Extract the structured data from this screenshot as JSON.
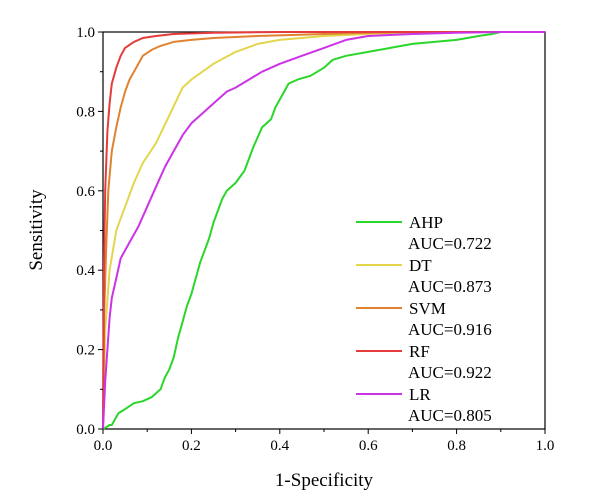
{
  "chart_data": {
    "type": "line",
    "title": "",
    "xlabel": "1-Specificity",
    "ylabel": "Sensitivity",
    "xlim": [
      0,
      1
    ],
    "ylim": [
      0,
      1
    ],
    "xticks": [
      "0.0",
      "0.2",
      "0.4",
      "0.6",
      "0.8",
      "1.0"
    ],
    "yticks": [
      "0.0",
      "0.2",
      "0.4",
      "0.6",
      "0.8",
      "1.0"
    ],
    "grid": false,
    "legend_position": "center-right",
    "series": [
      {
        "name": "AHP",
        "auc_label": "AUC=0.722",
        "color": "#2bd62b",
        "points": [
          [
            0,
            0
          ],
          [
            0.005,
            0.003
          ],
          [
            0.015,
            0.01
          ],
          [
            0.02,
            0.01
          ],
          [
            0.035,
            0.04
          ],
          [
            0.05,
            0.05
          ],
          [
            0.07,
            0.065
          ],
          [
            0.09,
            0.07
          ],
          [
            0.11,
            0.08
          ],
          [
            0.13,
            0.1
          ],
          [
            0.14,
            0.13
          ],
          [
            0.15,
            0.15
          ],
          [
            0.16,
            0.18
          ],
          [
            0.17,
            0.23
          ],
          [
            0.18,
            0.27
          ],
          [
            0.19,
            0.31
          ],
          [
            0.2,
            0.34
          ],
          [
            0.21,
            0.38
          ],
          [
            0.22,
            0.42
          ],
          [
            0.23,
            0.45
          ],
          [
            0.24,
            0.48
          ],
          [
            0.25,
            0.52
          ],
          [
            0.26,
            0.55
          ],
          [
            0.27,
            0.58
          ],
          [
            0.28,
            0.6
          ],
          [
            0.3,
            0.62
          ],
          [
            0.32,
            0.65
          ],
          [
            0.33,
            0.68
          ],
          [
            0.34,
            0.71
          ],
          [
            0.36,
            0.76
          ],
          [
            0.38,
            0.78
          ],
          [
            0.39,
            0.81
          ],
          [
            0.4,
            0.83
          ],
          [
            0.41,
            0.85
          ],
          [
            0.42,
            0.87
          ],
          [
            0.44,
            0.88
          ],
          [
            0.47,
            0.89
          ],
          [
            0.5,
            0.91
          ],
          [
            0.52,
            0.93
          ],
          [
            0.55,
            0.94
          ],
          [
            0.6,
            0.95
          ],
          [
            0.65,
            0.96
          ],
          [
            0.7,
            0.97
          ],
          [
            0.75,
            0.975
          ],
          [
            0.8,
            0.98
          ],
          [
            0.85,
            0.99
          ],
          [
            0.88,
            0.995
          ],
          [
            0.9,
            1.0
          ],
          [
            1,
            1
          ]
        ]
      },
      {
        "name": "DT",
        "auc_label": "AUC=0.873",
        "color": "#e3d64c",
        "points": [
          [
            0,
            0
          ],
          [
            0.005,
            0.25
          ],
          [
            0.015,
            0.4
          ],
          [
            0.03,
            0.5
          ],
          [
            0.05,
            0.56
          ],
          [
            0.07,
            0.62
          ],
          [
            0.09,
            0.67
          ],
          [
            0.12,
            0.72
          ],
          [
            0.15,
            0.79
          ],
          [
            0.18,
            0.86
          ],
          [
            0.2,
            0.88
          ],
          [
            0.25,
            0.92
          ],
          [
            0.3,
            0.95
          ],
          [
            0.35,
            0.97
          ],
          [
            0.4,
            0.98
          ],
          [
            0.5,
            0.99
          ],
          [
            0.6,
            0.995
          ],
          [
            0.7,
            1.0
          ],
          [
            1,
            1
          ]
        ]
      },
      {
        "name": "SVM",
        "auc_label": "AUC=0.916",
        "color": "#e0822f",
        "points": [
          [
            0,
            0
          ],
          [
            0.003,
            0.3
          ],
          [
            0.007,
            0.45
          ],
          [
            0.012,
            0.6
          ],
          [
            0.02,
            0.7
          ],
          [
            0.03,
            0.76
          ],
          [
            0.04,
            0.81
          ],
          [
            0.05,
            0.85
          ],
          [
            0.06,
            0.88
          ],
          [
            0.075,
            0.91
          ],
          [
            0.09,
            0.94
          ],
          [
            0.11,
            0.955
          ],
          [
            0.13,
            0.965
          ],
          [
            0.16,
            0.975
          ],
          [
            0.2,
            0.98
          ],
          [
            0.25,
            0.985
          ],
          [
            0.35,
            0.99
          ],
          [
            0.5,
            0.995
          ],
          [
            0.6,
            0.998
          ],
          [
            0.7,
            1.0
          ],
          [
            1,
            1
          ]
        ]
      },
      {
        "name": "RF",
        "auc_label": "AUC=0.922",
        "color": "#e53b3b",
        "points": [
          [
            0,
            0
          ],
          [
            0.002,
            0.4
          ],
          [
            0.005,
            0.6
          ],
          [
            0.01,
            0.75
          ],
          [
            0.015,
            0.82
          ],
          [
            0.02,
            0.87
          ],
          [
            0.03,
            0.91
          ],
          [
            0.04,
            0.94
          ],
          [
            0.05,
            0.96
          ],
          [
            0.07,
            0.975
          ],
          [
            0.09,
            0.985
          ],
          [
            0.12,
            0.99
          ],
          [
            0.16,
            0.995
          ],
          [
            0.25,
            0.998
          ],
          [
            0.4,
            1.0
          ],
          [
            1,
            1
          ]
        ]
      },
      {
        "name": "LR",
        "auc_label": "AUC=0.805",
        "color": "#cc33e6",
        "points": [
          [
            0,
            0
          ],
          [
            0.005,
            0.12
          ],
          [
            0.01,
            0.2
          ],
          [
            0.015,
            0.28
          ],
          [
            0.02,
            0.33
          ],
          [
            0.03,
            0.38
          ],
          [
            0.04,
            0.43
          ],
          [
            0.06,
            0.47
          ],
          [
            0.08,
            0.51
          ],
          [
            0.1,
            0.56
          ],
          [
            0.12,
            0.61
          ],
          [
            0.14,
            0.66
          ],
          [
            0.16,
            0.7
          ],
          [
            0.18,
            0.74
          ],
          [
            0.2,
            0.77
          ],
          [
            0.22,
            0.79
          ],
          [
            0.24,
            0.81
          ],
          [
            0.26,
            0.83
          ],
          [
            0.28,
            0.85
          ],
          [
            0.3,
            0.86
          ],
          [
            0.33,
            0.88
          ],
          [
            0.36,
            0.9
          ],
          [
            0.4,
            0.92
          ],
          [
            0.45,
            0.94
          ],
          [
            0.5,
            0.96
          ],
          [
            0.55,
            0.98
          ],
          [
            0.6,
            0.99
          ],
          [
            0.7,
            0.995
          ],
          [
            0.8,
            0.998
          ],
          [
            0.9,
            1.0
          ],
          [
            1,
            1
          ]
        ]
      }
    ]
  }
}
